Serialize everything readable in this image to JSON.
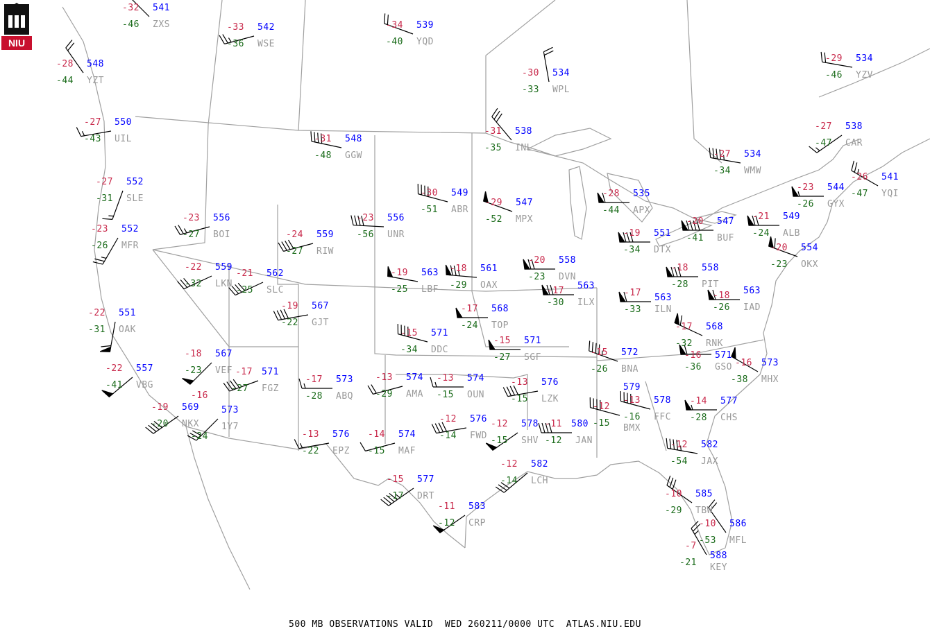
{
  "footer": {
    "text": "500 MB OBSERVATIONS VALID  WED 260211/0000 UTC  ATLAS.NIU.EDU"
  },
  "logo": {
    "text": "NIU",
    "color": "#c8102e"
  },
  "colors": {
    "temperature": "#c8284a",
    "height": "#0000ff",
    "dewpoint": "#1a6b1a",
    "station_id": "#999999",
    "map": "#a0a0a0",
    "barb": "#000000"
  },
  "units": {
    "wind": "kt"
  },
  "stations": [
    {
      "id": "ZXS",
      "temp": "-32",
      "height": "541",
      "dewpoint": "-46",
      "wdir": 315,
      "wspd": 10
    },
    {
      "id": "WSE",
      "temp": "-33",
      "height": "542",
      "dewpoint": "-36",
      "wdir": 255,
      "wspd": 25
    },
    {
      "id": "YZT",
      "temp": "-28",
      "height": "548",
      "dewpoint": "-44",
      "wdir": 325,
      "wspd": 20
    },
    {
      "id": "UIL",
      "temp": "-27",
      "height": "550",
      "dewpoint": "-43",
      "wdir": 260,
      "wspd": 15
    },
    {
      "id": "GGW",
      "temp": "-31",
      "height": "548",
      "dewpoint": "-48",
      "wdir": 282,
      "wspd": 40
    },
    {
      "id": "YQD",
      "temp": "-34",
      "height": "539",
      "dewpoint": "-40",
      "wdir": 290,
      "wspd": 20
    },
    {
      "id": "WPL",
      "temp": "-30",
      "height": "534",
      "dewpoint": "-33",
      "wdir": 350,
      "wspd": 20
    },
    {
      "id": "INL",
      "temp": "-31",
      "height": "538",
      "dewpoint": "-35",
      "wdir": 320,
      "wspd": 30
    },
    {
      "id": "WMW",
      "temp": "-27",
      "height": "534",
      "dewpoint": "-34",
      "wdir": 280,
      "wspd": 45
    },
    {
      "id": "YZV",
      "temp": "-29",
      "height": "534",
      "dewpoint": "-46",
      "wdir": 280,
      "wspd": 20
    },
    {
      "id": "CAR",
      "temp": "-27",
      "height": "538",
      "dewpoint": "-47",
      "wdir": 235,
      "wspd": 15
    },
    {
      "id": "YQI",
      "temp": "-26",
      "height": "541",
      "dewpoint": "-47",
      "wdir": 300,
      "wspd": 25
    },
    {
      "id": "GYX",
      "temp": "-23",
      "height": "544",
      "dewpoint": "-26",
      "wdir": 270,
      "wspd": 55
    },
    {
      "id": "ALB",
      "temp": "-21",
      "height": "549",
      "dewpoint": "-24",
      "wdir": 270,
      "wspd": 70
    },
    {
      "id": "OKX",
      "temp": "-20",
      "height": "554",
      "dewpoint": "-23",
      "wdir": 290,
      "wspd": 60
    },
    {
      "id": "BUF",
      "temp": "-20",
      "height": "547",
      "dewpoint": "-41",
      "wdir": 270,
      "wspd": 90
    },
    {
      "id": "APX",
      "temp": "-28",
      "height": "535",
      "dewpoint": "-44",
      "wdir": 270,
      "wspd": 60
    },
    {
      "id": "DTX",
      "temp": "-19",
      "height": "551",
      "dewpoint": "-34",
      "wdir": 270,
      "wspd": 80
    },
    {
      "id": "PIT",
      "temp": "-18",
      "height": "558",
      "dewpoint": "-28",
      "wdir": 270,
      "wspd": 80
    },
    {
      "id": "IAD",
      "temp": "-18",
      "height": "563",
      "dewpoint": "-26",
      "wdir": 270,
      "wspd": 60
    },
    {
      "id": "ILN",
      "temp": "-17",
      "height": "563",
      "dewpoint": "-33",
      "wdir": 270,
      "wspd": 60
    },
    {
      "id": "RNK",
      "temp": "-17",
      "height": "568",
      "dewpoint": "-32",
      "wdir": 295,
      "wspd": 60
    },
    {
      "id": "GSO",
      "temp": "-16",
      "height": "571",
      "dewpoint": "-36",
      "wdir": 270,
      "wspd": 60
    },
    {
      "id": "MHX",
      "temp": "-16",
      "height": "573",
      "dewpoint": "-38",
      "wdir": 300,
      "wspd": 50
    },
    {
      "id": "BNA",
      "temp": "-15",
      "height": "572",
      "dewpoint": "-26",
      "wdir": 290,
      "wspd": 45
    },
    {
      "id": "CHS",
      "temp": "-14",
      "height": "577",
      "dewpoint": "-28",
      "wdir": 270,
      "wspd": 55
    },
    {
      "id": "FFC",
      "temp": "-13",
      "height": "578",
      "dewpoint": "-16",
      "wdir": 285,
      "wspd": 40
    },
    {
      "id": "BMX",
      "temp": "-12",
      "height": "579",
      "dewpoint": "-15",
      "wdir": 285,
      "wspd": 40
    },
    {
      "id": "JAX",
      "temp": "-12",
      "height": "582",
      "dewpoint": "-54",
      "wdir": 280,
      "wspd": 45
    },
    {
      "id": "TBW",
      "temp": "-10",
      "height": "585",
      "dewpoint": "-29",
      "wdir": 305,
      "wspd": 30
    },
    {
      "id": "MFL",
      "temp": "-10",
      "height": "586",
      "dewpoint": "-53",
      "wdir": 325,
      "wspd": 20
    },
    {
      "id": "KEY",
      "temp": "-7",
      "height": "588",
      "dewpoint": "-21",
      "wdir": 330,
      "wspd": 25
    },
    {
      "id": "JAN",
      "temp": "-11",
      "height": "580",
      "dewpoint": "-12",
      "wdir": 270,
      "wspd": 40
    },
    {
      "id": "SHV",
      "temp": "-12",
      "height": "578",
      "dewpoint": "-15",
      "wdir": 235,
      "wspd": 50
    },
    {
      "id": "LCH",
      "temp": "-12",
      "height": "582",
      "dewpoint": "-14",
      "wdir": 230,
      "wspd": 30
    },
    {
      "id": "CRP",
      "temp": "-11",
      "height": "583",
      "dewpoint": "-12",
      "wdir": 235,
      "wspd": 50
    },
    {
      "id": "DRT",
      "temp": "-15",
      "height": "577",
      "dewpoint": "-17",
      "wdir": 235,
      "wspd": 45
    },
    {
      "id": "FWD",
      "temp": "-12",
      "height": "576",
      "dewpoint": "-14",
      "wdir": 260,
      "wspd": 40
    },
    {
      "id": "MAF",
      "temp": "-14",
      "height": "574",
      "dewpoint": "-15",
      "wdir": 255,
      "wspd": 10
    },
    {
      "id": "EPZ",
      "temp": "-13",
      "height": "576",
      "dewpoint": "-22",
      "wdir": 260,
      "wspd": 15
    },
    {
      "id": "ABQ",
      "temp": "-17",
      "height": "573",
      "dewpoint": "-28",
      "wdir": 270,
      "wspd": 15
    },
    {
      "id": "AMA",
      "temp": "-13",
      "height": "574",
      "dewpoint": "-29",
      "wdir": 255,
      "wspd": 20
    },
    {
      "id": "OUN",
      "temp": "-13",
      "height": "574",
      "dewpoint": "-15",
      "wdir": 270,
      "wspd": 15
    },
    {
      "id": "LZK",
      "temp": "-13",
      "height": "576",
      "dewpoint": "-15",
      "wdir": 260,
      "wspd": 40
    },
    {
      "id": "SGF",
      "temp": "-15",
      "height": "571",
      "dewpoint": "-27",
      "wdir": 270,
      "wspd": 50
    },
    {
      "id": "DDC",
      "temp": "-15",
      "height": "571",
      "dewpoint": "-34",
      "wdir": 285,
      "wspd": 40
    },
    {
      "id": "TOP",
      "temp": "-17",
      "height": "568",
      "dewpoint": "-24",
      "wdir": 270,
      "wspd": 50
    },
    {
      "id": "LBF",
      "temp": "-19",
      "height": "563",
      "dewpoint": "-25",
      "wdir": 280,
      "wspd": 50
    },
    {
      "id": "OAX",
      "temp": "-18",
      "height": "561",
      "dewpoint": "-29",
      "wdir": 275,
      "wspd": 75
    },
    {
      "id": "DVN",
      "temp": "-20",
      "height": "558",
      "dewpoint": "-23",
      "wdir": 270,
      "wspd": 70
    },
    {
      "id": "ILX",
      "temp": "-17",
      "height": "563",
      "dewpoint": "-30",
      "wdir": 270,
      "wspd": 70
    },
    {
      "id": "MPX",
      "temp": "-29",
      "height": "547",
      "dewpoint": "-52",
      "wdir": 290,
      "wspd": 50
    },
    {
      "id": "ABR",
      "temp": "-30",
      "height": "549",
      "dewpoint": "-51",
      "wdir": 285,
      "wspd": 40
    },
    {
      "id": "UNR",
      "temp": "-23",
      "height": "556",
      "dewpoint": "-56",
      "wdir": 273,
      "wspd": 40
    },
    {
      "id": "RIW",
      "temp": "-24",
      "height": "559",
      "dewpoint": "-27",
      "wdir": 255,
      "wspd": 40
    },
    {
      "id": "BOI",
      "temp": "-23",
      "height": "556",
      "dewpoint": "-27",
      "wdir": 255,
      "wspd": 25
    },
    {
      "id": "LKN",
      "temp": "-22",
      "height": "559",
      "dewpoint": "-32",
      "wdir": 245,
      "wspd": 30
    },
    {
      "id": "SLC",
      "temp": "-21",
      "height": "562",
      "dewpoint": "-25",
      "wdir": 245,
      "wspd": 40
    },
    {
      "id": "GJT",
      "temp": "-19",
      "height": "567",
      "dewpoint": "-22",
      "wdir": 260,
      "wspd": 40
    },
    {
      "id": "MFR",
      "temp": "-23",
      "height": "552",
      "dewpoint": "-26",
      "wdir": 210,
      "wspd": 25
    },
    {
      "id": "SLE",
      "temp": "-27",
      "height": "552",
      "dewpoint": "-31",
      "wdir": 200,
      "wspd": 15
    },
    {
      "id": "OAK",
      "temp": "-22",
      "height": "551",
      "dewpoint": "-31",
      "wdir": 190,
      "wspd": 60
    },
    {
      "id": "VBG",
      "temp": "-22",
      "height": "557",
      "dewpoint": "-41",
      "wdir": 230,
      "wspd": 50
    },
    {
      "id": "VEF",
      "temp": "-18",
      "height": "567",
      "dewpoint": "-23",
      "wdir": 225,
      "wspd": 50
    },
    {
      "id": "FGZ",
      "temp": "-17",
      "height": "571",
      "dewpoint": "-27",
      "wdir": 250,
      "wspd": 40
    },
    {
      "id": "NKX",
      "temp": "-19",
      "height": "569",
      "dewpoint": "-20",
      "wdir": 235,
      "wspd": 40
    },
    {
      "id": "1Y7",
      "temp": "-16",
      "height": "573",
      "dewpoint": "-24",
      "wdir": 225,
      "wspd": 30
    }
  ]
}
